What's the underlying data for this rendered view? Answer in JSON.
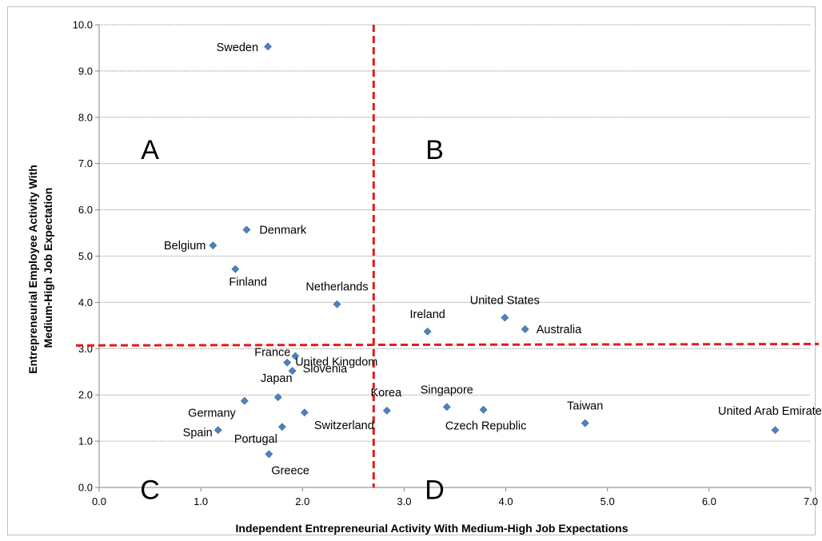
{
  "chart_data": {
    "type": "scatter",
    "xlabel": "Independent  Entrepreneurial Activity With Medium-High Job Expectations",
    "ylabel_lines": [
      "Entrepreneurial Employee Activity With",
      "Medium-High Job Expectation"
    ],
    "xlim": [
      0,
      7
    ],
    "ylim": [
      0,
      10
    ],
    "x_ticks": [
      "0.0",
      "1.0",
      "2.0",
      "3.0",
      "4.0",
      "5.0",
      "6.0",
      "7.0"
    ],
    "y_ticks": [
      "0.0",
      "1.0",
      "2.0",
      "3.0",
      "4.0",
      "5.0",
      "6.0",
      "7.0",
      "8.0",
      "9.0",
      "10.0"
    ],
    "grid": "horizontal",
    "marker_color": "#4f81bd",
    "divider_color": "#e31a1c",
    "dividers": {
      "x": 2.7,
      "y_left": 3.07,
      "y_right": 3.1
    },
    "quadrant_labels": [
      {
        "text": "A",
        "x": 0.5,
        "y": 7.1
      },
      {
        "text": "B",
        "x": 3.3,
        "y": 7.1
      },
      {
        "text": "C",
        "x": 0.5,
        "y": -0.25
      },
      {
        "text": "D",
        "x": 3.3,
        "y": -0.25
      }
    ],
    "points": [
      {
        "label": "Sweden",
        "x": 1.66,
        "y": 9.53
      },
      {
        "label": "Denmark",
        "x": 1.45,
        "y": 5.57
      },
      {
        "label": "Belgium",
        "x": 1.12,
        "y": 5.23
      },
      {
        "label": "Finland",
        "x": 1.34,
        "y": 4.72
      },
      {
        "label": "Netherlands",
        "x": 2.34,
        "y": 3.96
      },
      {
        "label": "Ireland",
        "x": 3.23,
        "y": 3.37
      },
      {
        "label": "United States",
        "x": 3.99,
        "y": 3.67
      },
      {
        "label": "Australia",
        "x": 4.19,
        "y": 3.42
      },
      {
        "label": "France",
        "x": 1.93,
        "y": 2.84
      },
      {
        "label": "United Kingdom",
        "x": 1.85,
        "y": 2.7
      },
      {
        "label": "Slovenia",
        "x": 1.9,
        "y": 2.52
      },
      {
        "label": "Japan",
        "x": 1.76,
        "y": 1.95
      },
      {
        "label": "Germany",
        "x": 1.43,
        "y": 1.87
      },
      {
        "label": "Switzerland",
        "x": 2.02,
        "y": 1.62
      },
      {
        "label": "Portugal",
        "x": 1.8,
        "y": 1.31
      },
      {
        "label": "Spain",
        "x": 1.17,
        "y": 1.24
      },
      {
        "label": "Greece",
        "x": 1.67,
        "y": 0.72
      },
      {
        "label": "Korea",
        "x": 2.83,
        "y": 1.66
      },
      {
        "label": "Singapore",
        "x": 3.42,
        "y": 1.74
      },
      {
        "label": "Czech Republic",
        "x": 3.78,
        "y": 1.68
      },
      {
        "label": "Taiwan",
        "x": 4.78,
        "y": 1.39
      },
      {
        "label": "United Arab Emirates",
        "x": 6.65,
        "y": 1.24
      }
    ]
  }
}
